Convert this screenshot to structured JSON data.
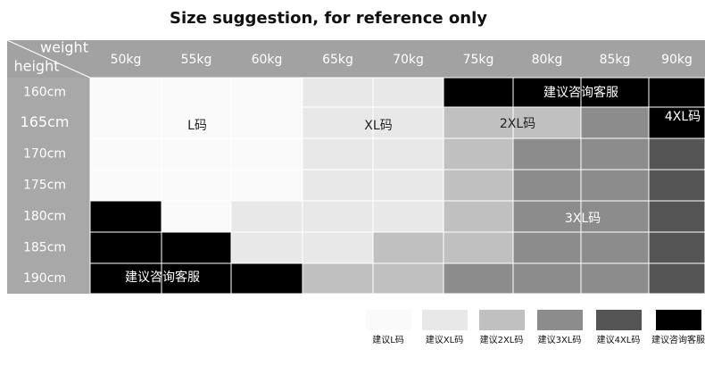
{
  "title": "Size suggestion, for reference only",
  "corner": {
    "top": "weight",
    "bottom": "height"
  },
  "weights": [
    "50kg",
    "55kg",
    "60kg",
    "65kg",
    "70kg",
    "75kg",
    "80kg",
    "85kg",
    "90kg"
  ],
  "heights": [
    "160cm",
    "165cm",
    "170cm",
    "175cm",
    "180cm",
    "185cm",
    "190cm"
  ],
  "region_labels": [
    "L码",
    "XL码",
    "2XL码",
    "3XL码",
    "4XL码",
    "建议咨询客服",
    "建议咨询客服"
  ],
  "legend": [
    {
      "label": "建议L码",
      "color": "#fafafa"
    },
    {
      "label": "建议XL码",
      "color": "#e8e8e8"
    },
    {
      "label": "建议2XL码",
      "color": "#c0c0c0"
    },
    {
      "label": "建议3XL码",
      "color": "#8c8c8c"
    },
    {
      "label": "建议4XL码",
      "color": "#555555"
    },
    {
      "label": "建议咨询客服",
      "color": "#000000"
    }
  ]
}
